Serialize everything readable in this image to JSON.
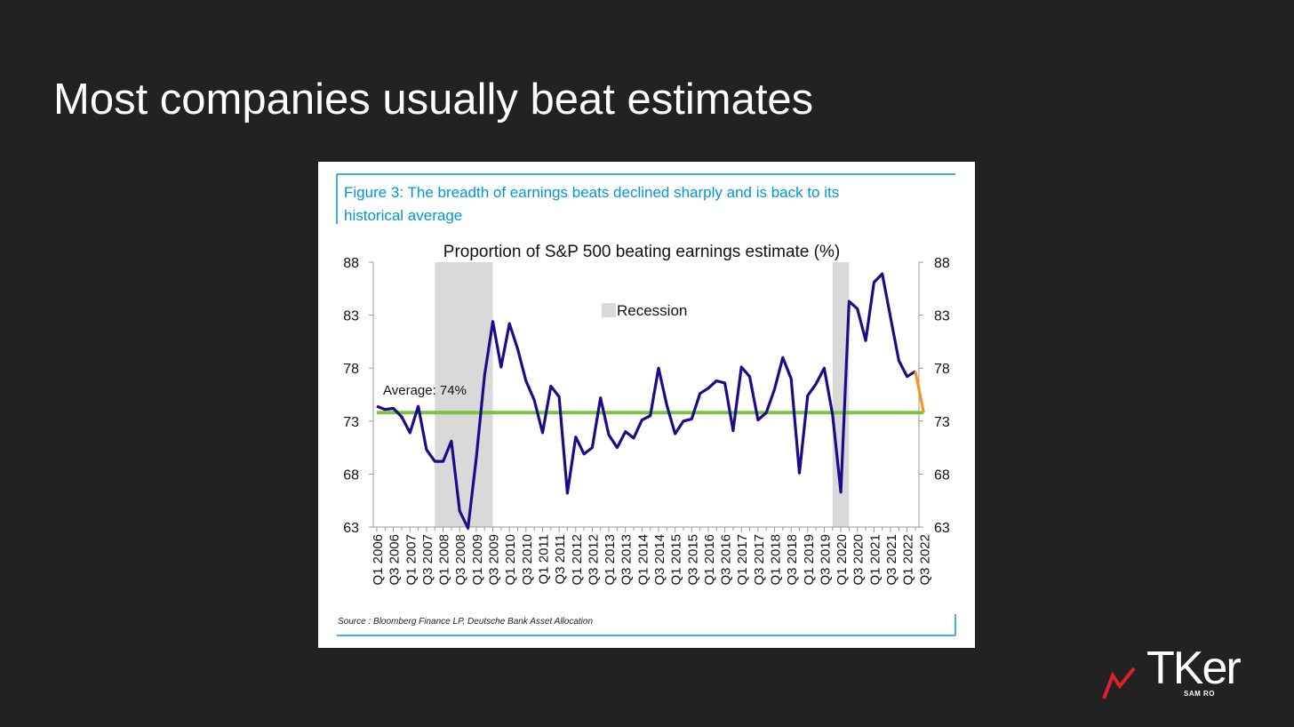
{
  "slide": {
    "title": "Most companies usually beat estimates"
  },
  "figure": {
    "caption_line1": "Figure 3: The breadth of earnings beats declined sharply and is back to its",
    "caption_line2": "historical average",
    "source": "Source : Bloomberg Finance LP, Deutsche Bank Asset Allocation",
    "accent_color": "#0096d6"
  },
  "logo": {
    "word": "TKer",
    "sub": "SAM RO",
    "mark_color": "#e0202a"
  },
  "chart_data": {
    "type": "line",
    "title": "Proportion of S&P 500 beating earnings estimate (%)",
    "x_tick_labels": [
      "Q1 2006",
      "Q3 2006",
      "Q1 2007",
      "Q3 2007",
      "Q1 2008",
      "Q3 2008",
      "Q1 2009",
      "Q3 2009",
      "Q1 2010",
      "Q3 2010",
      "Q1 2011",
      "Q3 2011",
      "Q1 2012",
      "Q3 2012",
      "Q1 2013",
      "Q3 2013",
      "Q1 2014",
      "Q3 2014",
      "Q1 2015",
      "Q3 2015",
      "Q1 2016",
      "Q3 2016",
      "Q1 2017",
      "Q3 2017",
      "Q1 2018",
      "Q3 2018",
      "Q1 2019",
      "Q3 2019",
      "Q1 2020",
      "Q3 2020",
      "Q1 2021",
      "Q3 2021",
      "Q1 2022",
      "Q3 2022"
    ],
    "ylim": [
      63,
      88
    ],
    "yticks": [
      63,
      68,
      73,
      78,
      83,
      88
    ],
    "y_tick_labels": [
      "63",
      "68",
      "73",
      "78",
      "83",
      "88"
    ],
    "series": [
      {
        "color": "#1f0a8a",
        "values": [
          74.4,
          74.1,
          74.2,
          73.4,
          71.9,
          74.4,
          70.3,
          69.2,
          69.2,
          71.1,
          64.5,
          62.9,
          69.5,
          77.3,
          82.4,
          78.1,
          82.2,
          79.8,
          76.8,
          75.0,
          71.9,
          76.3,
          75.3,
          66.2,
          71.5,
          69.9,
          70.5,
          75.2,
          71.7,
          70.5,
          72.0,
          71.4,
          73.1,
          73.5,
          78.0,
          74.5,
          71.8,
          73.0,
          73.2,
          75.6,
          76.1,
          76.8,
          76.6,
          72.1,
          78.1,
          77.2,
          73.1,
          73.8,
          76.0,
          79.0,
          77.0,
          68.1,
          75.4,
          76.5,
          78.0,
          73.6,
          66.3,
          84.3,
          83.6,
          80.6,
          86.1,
          86.9,
          82.8,
          78.7,
          77.2,
          77.7
        ]
      },
      {
        "color": "#f5961e",
        "values_from_index": 65,
        "values": [
          77.7,
          73.8
        ]
      }
    ],
    "average": {
      "label": "Average: 74%",
      "value": 73.8,
      "color": "#7dc242"
    },
    "recessions": [
      {
        "start_index": 7,
        "end_index": 14
      },
      {
        "start_index": 55,
        "end_index": 57
      }
    ],
    "recession_color": "#d9d9d9",
    "legend": {
      "label": "Recession",
      "placement": "top-center"
    },
    "grid": false
  }
}
